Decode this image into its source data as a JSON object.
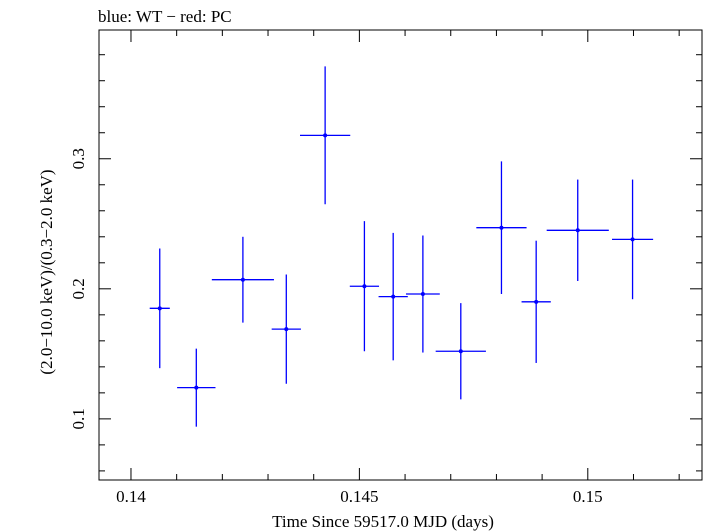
{
  "header": {
    "title": "blue: WT − red: PC"
  },
  "chart_data": {
    "type": "scatter",
    "title": "blue: WT − red: PC",
    "xlabel": "Time Since 59517.0 MJD (days)",
    "ylabel": "(2.0−10.0 keV)/(0.3−2.0 keV)",
    "xlim": [
      0.1393,
      0.1525
    ],
    "ylim": [
      0.053,
      0.399
    ],
    "x_ticks": [
      0.14,
      0.145,
      0.15
    ],
    "x_tick_labels": [
      "0.14",
      "0.145",
      "0.15"
    ],
    "y_ticks": [
      0.1,
      0.2,
      0.3
    ],
    "y_tick_labels": [
      "0.1",
      "0.2",
      "0.3"
    ],
    "grid": false,
    "series": [
      {
        "name": "WT",
        "color": "#0000ff",
        "points": [
          {
            "x": 0.14063,
            "xerr": 0.00022,
            "y": 0.185,
            "yerr_lo": 0.046,
            "yerr_hi": 0.046
          },
          {
            "x": 0.14143,
            "xerr": 0.00042,
            "y": 0.124,
            "yerr_lo": 0.03,
            "yerr_hi": 0.03
          },
          {
            "x": 0.14245,
            "xerr": 0.00068,
            "y": 0.207,
            "yerr_lo": 0.033,
            "yerr_hi": 0.033
          },
          {
            "x": 0.1434,
            "xerr": 0.00032,
            "y": 0.169,
            "yerr_lo": 0.042,
            "yerr_hi": 0.042
          },
          {
            "x": 0.14425,
            "xerr": 0.00055,
            "y": 0.318,
            "yerr_lo": 0.053,
            "yerr_hi": 0.053
          },
          {
            "x": 0.14511,
            "xerr": 0.00032,
            "y": 0.202,
            "yerr_lo": 0.05,
            "yerr_hi": 0.05
          },
          {
            "x": 0.14574,
            "xerr": 0.00032,
            "y": 0.194,
            "yerr_lo": 0.049,
            "yerr_hi": 0.049
          },
          {
            "x": 0.14639,
            "xerr": 0.00037,
            "y": 0.196,
            "yerr_lo": 0.045,
            "yerr_hi": 0.045
          },
          {
            "x": 0.14722,
            "xerr": 0.00055,
            "y": 0.152,
            "yerr_lo": 0.037,
            "yerr_hi": 0.037
          },
          {
            "x": 0.14811,
            "xerr": 0.00055,
            "y": 0.247,
            "yerr_lo": 0.051,
            "yerr_hi": 0.051
          },
          {
            "x": 0.14887,
            "xerr": 0.00032,
            "y": 0.19,
            "yerr_lo": 0.047,
            "yerr_hi": 0.047
          },
          {
            "x": 0.14978,
            "xerr": 0.00068,
            "y": 0.245,
            "yerr_lo": 0.039,
            "yerr_hi": 0.039
          },
          {
            "x": 0.15098,
            "xerr": 0.00045,
            "y": 0.238,
            "yerr_lo": 0.046,
            "yerr_hi": 0.046
          }
        ]
      }
    ]
  }
}
